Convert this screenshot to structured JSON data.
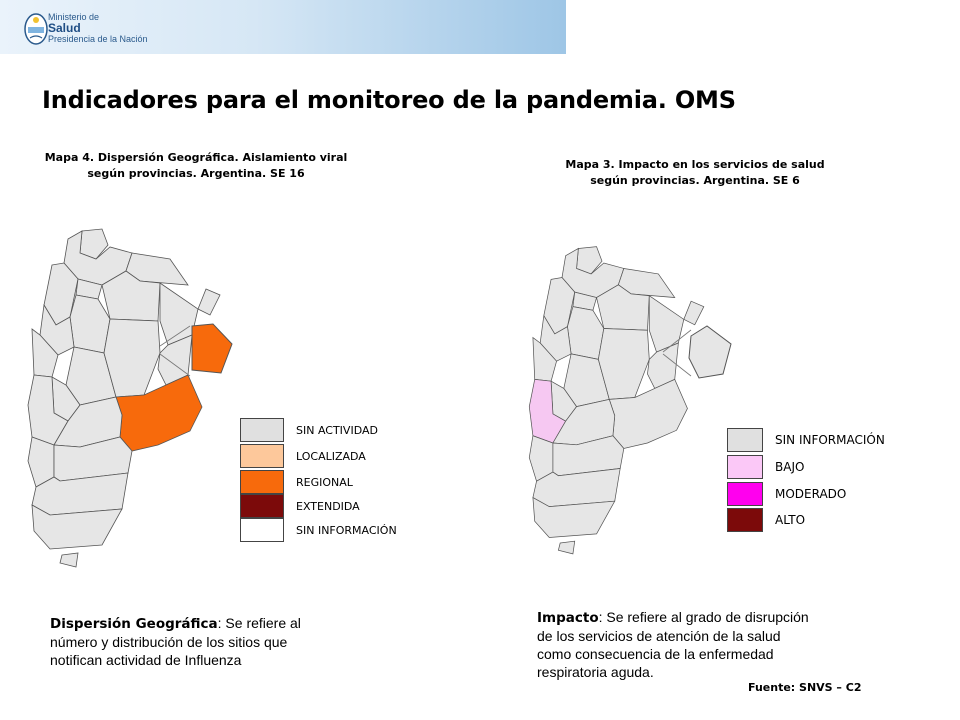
{
  "header": {
    "logo_line1": "Ministerio de",
    "logo_line2": "Salud",
    "logo_line3": "Presidencia de la Nación"
  },
  "title": "Indicadores para el monitoreo de la pandemia. OMS",
  "map_left": {
    "caption_line1": "Mapa 4. Dispersión Geográfica. Aislamiento viral",
    "caption_line2": "según provincias. Argentina. SE 16",
    "legend": [
      {
        "label": "SIN ACTIVIDAD",
        "color": "#e0e0e0"
      },
      {
        "label": "LOCALIZADA",
        "color": "#fdc89b"
      },
      {
        "label": "REGIONAL",
        "color": "#f76a0c"
      },
      {
        "label": "EXTENDIDA",
        "color": "#7c0a0a"
      },
      {
        "label": "SIN INFORMACIÓN",
        "color": "#ffffff"
      }
    ],
    "highlight_color": "#f76a0c",
    "base_color": "#e6e6e6"
  },
  "map_right": {
    "caption_line1": "Mapa 3. Impacto  en los servicios de salud",
    "caption_line2": "según provincias. Argentina.  SE 6",
    "legend": [
      {
        "label": "SIN INFORMACIÓN",
        "color": "#e0e0e0"
      },
      {
        "label": "BAJO",
        "color": "#fbc8f7"
      },
      {
        "label": "MODERADO",
        "color": "#ff00ee"
      },
      {
        "label": "ALTO",
        "color": "#7c0a0a"
      }
    ],
    "highlight_color": "#f6c8f2",
    "base_color": "#e6e6e6"
  },
  "desc_left": {
    "term": "Dispersión Geográfica",
    "text_line1": ": Se refiere al",
    "text_line2": "número y distribución de los sitios que",
    "text_line3": "notifican actividad de Influenza"
  },
  "desc_right": {
    "term": "Impacto",
    "text_line1": ": Se refiere al grado de disrupción",
    "text_line2": "de los servicios de atención de la salud",
    "text_line3": "como consecuencia  de la enfermedad",
    "text_line4": "respiratoria aguda."
  },
  "source": "Fuente: SNVS – C2"
}
